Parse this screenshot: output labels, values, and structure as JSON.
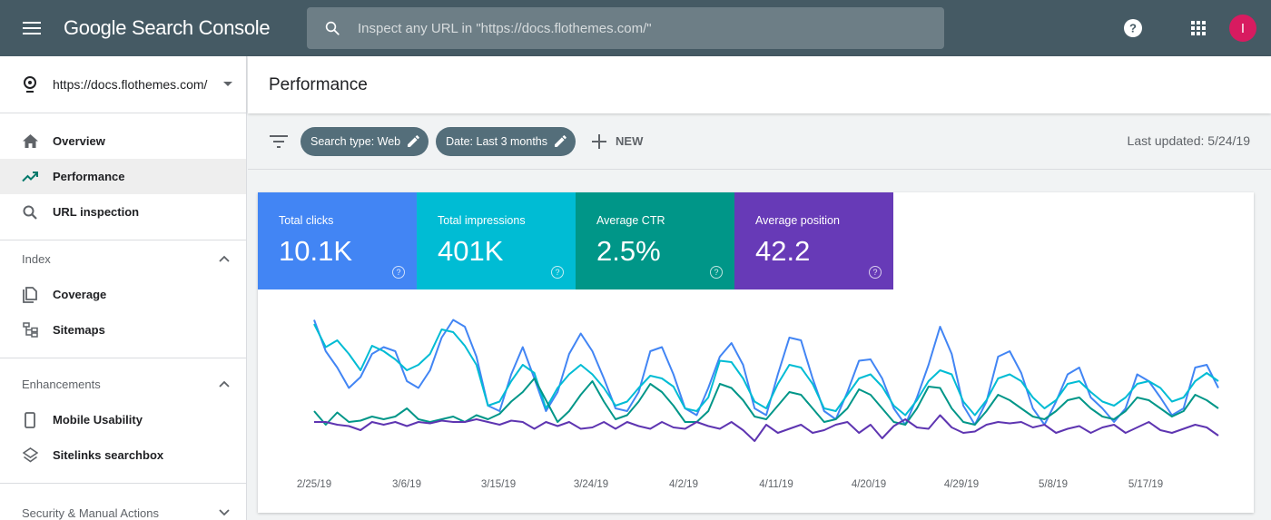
{
  "header": {
    "brand": "Google Search Console",
    "search_placeholder": "Inspect any URL in \"https://docs.flothemes.com/\"",
    "avatar_letter": "I"
  },
  "sidebar": {
    "property": "https://docs.flothemes.com/",
    "primary_items": [
      {
        "label": "Overview",
        "icon": "home-icon"
      },
      {
        "label": "Performance",
        "icon": "trending-up-icon",
        "active": true
      },
      {
        "label": "URL inspection",
        "icon": "search-icon"
      }
    ],
    "index": {
      "heading": "Index",
      "items": [
        {
          "label": "Coverage",
          "icon": "file-copy-icon"
        },
        {
          "label": "Sitemaps",
          "icon": "sitemap-icon"
        }
      ]
    },
    "enhancements": {
      "heading": "Enhancements",
      "items": [
        {
          "label": "Mobile Usability",
          "icon": "smartphone-icon"
        },
        {
          "label": "Sitelinks searchbox",
          "icon": "layers-icon"
        }
      ]
    },
    "security": {
      "heading": "Security & Manual Actions"
    }
  },
  "main": {
    "title": "Performance",
    "filters": {
      "search_type": "Search type: Web",
      "date": "Date: Last 3 months",
      "new_label": "NEW"
    },
    "last_updated": "Last updated: 5/24/19",
    "metrics": [
      {
        "label": "Total clicks",
        "value": "10.1K",
        "color": "#4285f4"
      },
      {
        "label": "Total impressions",
        "value": "401K",
        "color": "#00bcd4"
      },
      {
        "label": "Average CTR",
        "value": "2.5%",
        "color": "#009688"
      },
      {
        "label": "Average position",
        "value": "42.2",
        "color": "#673ab7"
      }
    ]
  },
  "chart_data": {
    "type": "line",
    "x_ticks": [
      "2/25/19",
      "3/6/19",
      "3/15/19",
      "3/24/19",
      "4/2/19",
      "4/11/19",
      "4/20/19",
      "4/29/19",
      "5/8/19",
      "5/17/19"
    ],
    "grid": false,
    "series": [
      {
        "name": "Total clicks",
        "color": "#4285f4",
        "values": [
          0.95,
          0.72,
          0.6,
          0.45,
          0.53,
          0.7,
          0.75,
          0.72,
          0.5,
          0.45,
          0.58,
          0.82,
          0.95,
          0.9,
          0.68,
          0.32,
          0.28,
          0.55,
          0.75,
          0.52,
          0.28,
          0.42,
          0.7,
          0.85,
          0.72,
          0.52,
          0.3,
          0.28,
          0.42,
          0.72,
          0.75,
          0.55,
          0.3,
          0.25,
          0.45,
          0.68,
          0.78,
          0.62,
          0.3,
          0.25,
          0.55,
          0.82,
          0.8,
          0.52,
          0.28,
          0.22,
          0.42,
          0.65,
          0.66,
          0.52,
          0.3,
          0.18,
          0.38,
          0.62,
          0.9,
          0.7,
          0.32,
          0.18,
          0.35,
          0.68,
          0.72,
          0.56,
          0.3,
          0.18,
          0.35,
          0.55,
          0.6,
          0.38,
          0.3,
          0.2,
          0.3,
          0.55,
          0.5,
          0.38,
          0.25,
          0.3,
          0.6,
          0.62,
          0.45
        ]
      },
      {
        "name": "Total impressions",
        "color": "#00bcd4",
        "values": [
          0.92,
          0.75,
          0.8,
          0.7,
          0.58,
          0.76,
          0.72,
          0.66,
          0.58,
          0.62,
          0.7,
          0.88,
          0.86,
          0.76,
          0.62,
          0.32,
          0.35,
          0.5,
          0.62,
          0.56,
          0.3,
          0.45,
          0.55,
          0.62,
          0.55,
          0.45,
          0.32,
          0.35,
          0.45,
          0.54,
          0.52,
          0.46,
          0.3,
          0.28,
          0.38,
          0.65,
          0.64,
          0.52,
          0.35,
          0.3,
          0.48,
          0.62,
          0.6,
          0.48,
          0.3,
          0.28,
          0.4,
          0.52,
          0.55,
          0.46,
          0.32,
          0.25,
          0.36,
          0.5,
          0.58,
          0.55,
          0.35,
          0.25,
          0.36,
          0.52,
          0.55,
          0.5,
          0.38,
          0.3,
          0.36,
          0.48,
          0.5,
          0.42,
          0.35,
          0.32,
          0.38,
          0.48,
          0.5,
          0.45,
          0.35,
          0.38,
          0.5,
          0.56,
          0.5
        ]
      },
      {
        "name": "Average CTR",
        "color": "#009688",
        "values": [
          0.28,
          0.18,
          0.27,
          0.2,
          0.21,
          0.24,
          0.22,
          0.24,
          0.3,
          0.22,
          0.2,
          0.22,
          0.24,
          0.2,
          0.25,
          0.22,
          0.26,
          0.35,
          0.42,
          0.52,
          0.36,
          0.2,
          0.28,
          0.4,
          0.5,
          0.35,
          0.22,
          0.25,
          0.35,
          0.48,
          0.42,
          0.32,
          0.2,
          0.2,
          0.28,
          0.48,
          0.45,
          0.36,
          0.24,
          0.22,
          0.32,
          0.42,
          0.4,
          0.3,
          0.2,
          0.22,
          0.3,
          0.44,
          0.4,
          0.3,
          0.2,
          0.18,
          0.3,
          0.46,
          0.45,
          0.3,
          0.2,
          0.18,
          0.28,
          0.4,
          0.36,
          0.3,
          0.24,
          0.22,
          0.28,
          0.36,
          0.38,
          0.3,
          0.24,
          0.22,
          0.28,
          0.38,
          0.36,
          0.3,
          0.24,
          0.28,
          0.4,
          0.36,
          0.3
        ]
      },
      {
        "name": "Average position",
        "color": "#5e35b1",
        "values": [
          0.2,
          0.2,
          0.18,
          0.17,
          0.14,
          0.2,
          0.18,
          0.2,
          0.17,
          0.2,
          0.19,
          0.21,
          0.2,
          0.2,
          0.22,
          0.2,
          0.18,
          0.21,
          0.2,
          0.15,
          0.2,
          0.17,
          0.2,
          0.15,
          0.16,
          0.2,
          0.15,
          0.2,
          0.17,
          0.15,
          0.2,
          0.16,
          0.15,
          0.2,
          0.17,
          0.15,
          0.2,
          0.14,
          0.06,
          0.18,
          0.12,
          0.15,
          0.18,
          0.12,
          0.14,
          0.18,
          0.2,
          0.12,
          0.18,
          0.08,
          0.17,
          0.22,
          0.16,
          0.15,
          0.25,
          0.16,
          0.12,
          0.13,
          0.18,
          0.2,
          0.19,
          0.2,
          0.16,
          0.18,
          0.12,
          0.15,
          0.17,
          0.12,
          0.16,
          0.18,
          0.12,
          0.16,
          0.2,
          0.14,
          0.12,
          0.15,
          0.18,
          0.16,
          0.1
        ]
      }
    ]
  }
}
